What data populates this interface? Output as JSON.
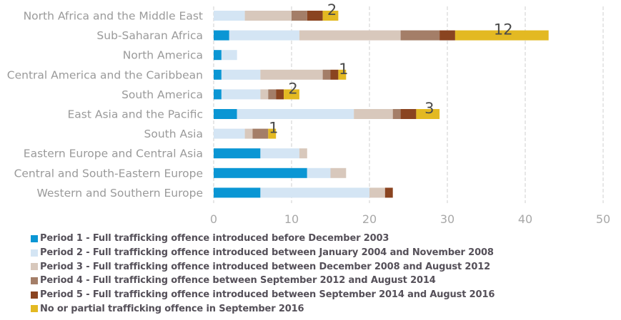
{
  "chart_data": {
    "type": "bar",
    "orientation": "horizontal",
    "stacked": true,
    "title": "",
    "xlabel": "",
    "ylabel": "",
    "xlim": [
      0,
      50
    ],
    "x_ticks": [
      0,
      10,
      20,
      30,
      40,
      50
    ],
    "x_tick_labels": [
      "0",
      "10",
      "20",
      "30",
      "40",
      "50"
    ],
    "grid": "vertical-dashed",
    "legend_position": "bottom-left",
    "categories": [
      "North Africa and the Middle East",
      "Sub-Saharan Africa",
      "North America",
      "Central America and the Caribbean",
      "South America",
      "East Asia and the Pacific",
      "South Asia",
      "Eastern Europe and Central Asia",
      "Central and South-Eastern Europe",
      "Western and Southern Europe"
    ],
    "series": [
      {
        "name": "Period 1 - Full trafficking offence introduced before December 2003",
        "color": "#0a96d4",
        "values": [
          0,
          2,
          1,
          1,
          1,
          3,
          0,
          6,
          12,
          6
        ]
      },
      {
        "name": "Period 2 - Full trafficking offence introduced between January 2004 and November 2008",
        "color": "#d4e5f4",
        "values": [
          4,
          9,
          2,
          5,
          5,
          15,
          4,
          5,
          3,
          14
        ]
      },
      {
        "name": "Period 3 - Full trafficking offence introduced between December 2008 and August 2012",
        "color": "#d8c8bc",
        "values": [
          6,
          13,
          0,
          8,
          1,
          5,
          1,
          1,
          2,
          2
        ]
      },
      {
        "name": "Period 4 - Full trafficking offence between September 2012 and August 2014",
        "color": "#a47e68",
        "values": [
          2,
          5,
          0,
          1,
          1,
          1,
          2,
          0,
          0,
          0
        ]
      },
      {
        "name": "Period 5 - Full trafficking offence introduced between September 2014 and August 2016",
        "color": "#8a4420",
        "values": [
          2,
          2,
          0,
          1,
          1,
          2,
          0,
          0,
          0,
          1
        ]
      },
      {
        "name": "No or partial trafficking offence in September 2016",
        "color": "#e3b922",
        "values": [
          2,
          12,
          0,
          1,
          2,
          3,
          1,
          0,
          0,
          0
        ]
      }
    ],
    "data_labels": [
      "2",
      "12",
      "",
      "1",
      "2",
      "3",
      "1",
      "",
      "",
      ""
    ]
  }
}
